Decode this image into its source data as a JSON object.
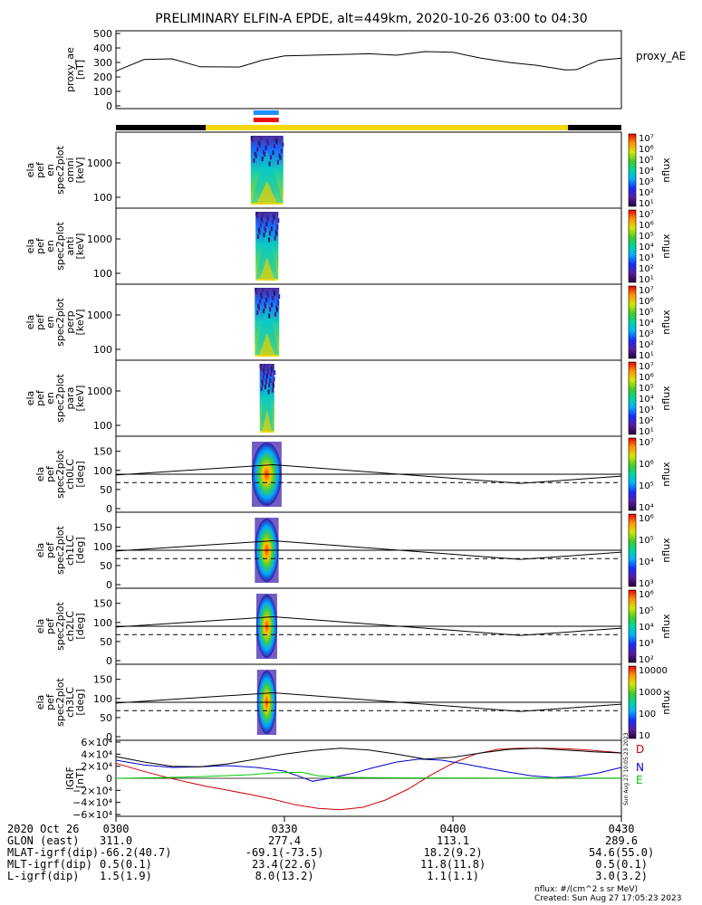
{
  "title": "PRELIMINARY ELFIN-A EPDE, alt=449km, 2020-10-26 03:00 to 04:30",
  "chart_data": [
    {
      "type": "line",
      "name": "proxy_ae-panel",
      "ylabel": [
        "proxy_ae",
        "[nT]"
      ],
      "legend": "proxy_AE",
      "ylim": [
        0,
        500
      ],
      "yticks": [
        "0",
        "100",
        "200",
        "300",
        "400",
        "500"
      ],
      "series": [
        {
          "name": "proxy_AE",
          "x": [
            0,
            5,
            10,
            15,
            22,
            26,
            30,
            35,
            40,
            45,
            50,
            55,
            60,
            65,
            70,
            75,
            80,
            82,
            86,
            90
          ],
          "y": [
            240,
            320,
            325,
            270,
            268,
            315,
            345,
            350,
            355,
            360,
            350,
            375,
            370,
            330,
            300,
            280,
            248,
            250,
            315,
            330
          ]
        }
      ]
    },
    {
      "type": "heatmap",
      "name": "omni-spectrogram",
      "ylabel": [
        "ela",
        "pef",
        "en",
        "spec2plot",
        "omni",
        "[keV]"
      ],
      "yticks": [
        "100",
        "1000"
      ],
      "colorbar": {
        "label": "nflux",
        "ticks": [
          "10¹",
          "10²",
          "10³",
          "10⁴",
          "10⁵",
          "10⁶",
          "10⁷"
        ]
      }
    },
    {
      "type": "heatmap",
      "name": "anti-spectrogram",
      "ylabel": [
        "ela",
        "pef",
        "en",
        "spec2plot",
        "anti",
        "[keV]"
      ],
      "yticks": [
        "100",
        "1000"
      ],
      "colorbar": {
        "label": "nflux",
        "ticks": [
          "10¹",
          "10²",
          "10³",
          "10⁴",
          "10⁵",
          "10⁶",
          "10⁷"
        ]
      }
    },
    {
      "type": "heatmap",
      "name": "perp-spectrogram",
      "ylabel": [
        "ela",
        "pef",
        "en",
        "spec2plot",
        "perp",
        "[keV]"
      ],
      "yticks": [
        "100",
        "1000"
      ],
      "colorbar": {
        "label": "nflux",
        "ticks": [
          "10¹",
          "10²",
          "10³",
          "10⁴",
          "10⁵",
          "10⁶",
          "10⁷"
        ]
      }
    },
    {
      "type": "heatmap",
      "name": "para-spectrogram",
      "ylabel": [
        "ela",
        "pef",
        "en",
        "spec2plot",
        "para",
        "[keV]"
      ],
      "yticks": [
        "100",
        "1000"
      ],
      "colorbar": {
        "label": "nflux",
        "ticks": [
          "10¹",
          "10²",
          "10³",
          "10⁴",
          "10⁵",
          "10⁶",
          "10⁷"
        ]
      }
    },
    {
      "type": "heatmap",
      "name": "ch0LC-pitch",
      "ylabel": [
        "ela",
        "pef",
        "spec2plot",
        "ch0LC",
        "[deg]"
      ],
      "yticks": [
        "0",
        "50",
        "100",
        "150"
      ],
      "colorbar": {
        "label": "nflux",
        "ticks": [
          "10⁴",
          "10⁵",
          "10⁶",
          "10⁷"
        ]
      }
    },
    {
      "type": "heatmap",
      "name": "ch1LC-pitch",
      "ylabel": [
        "ela",
        "pef",
        "spec2plot",
        "ch1LC",
        "[deg]"
      ],
      "yticks": [
        "0",
        "50",
        "100",
        "150"
      ],
      "colorbar": {
        "label": "nflux",
        "ticks": [
          "10³",
          "10⁴",
          "10⁵",
          "10⁶"
        ]
      }
    },
    {
      "type": "heatmap",
      "name": "ch2LC-pitch",
      "ylabel": [
        "ela",
        "pef",
        "spec2plot",
        "ch2LC",
        "[deg]"
      ],
      "yticks": [
        "0",
        "50",
        "100",
        "150"
      ],
      "colorbar": {
        "label": "nflux",
        "ticks": [
          "10²",
          "10³",
          "10⁴",
          "10⁵",
          "10⁶"
        ]
      }
    },
    {
      "type": "heatmap",
      "name": "ch3LC-pitch",
      "ylabel": [
        "ela",
        "pef",
        "spec2plot",
        "ch3LC",
        "[deg]"
      ],
      "yticks": [
        "0",
        "50",
        "100",
        "150"
      ],
      "colorbar": {
        "label": "nflux",
        "ticks": [
          "10",
          "100",
          "1000",
          "10000"
        ]
      }
    },
    {
      "type": "line",
      "name": "igrf-panel",
      "ylabel": [
        "IGRF",
        "[nT]"
      ],
      "ylim": [
        -60000,
        60000
      ],
      "yticks": [
        "−6×10⁴",
        "−4×10⁴",
        "−2×10⁴",
        "0",
        "2×10⁴",
        "4×10⁴",
        "6×10⁴"
      ],
      "side_label": "Sun Aug 27 10:05:23 2023",
      "series": [
        {
          "name": "D",
          "color": "#cc0000",
          "x": [
            0,
            4,
            8,
            12,
            16,
            20,
            24,
            28,
            32,
            36,
            40,
            44,
            48,
            52,
            56,
            60,
            64,
            68,
            72,
            76,
            80,
            84,
            88,
            90
          ],
          "y": [
            25000,
            14000,
            4000,
            -5000,
            -13000,
            -20000,
            -27000,
            -35000,
            -44000,
            -50000,
            -52000,
            -48000,
            -36000,
            -18000,
            5000,
            25000,
            40000,
            48000,
            50000,
            50000,
            49000,
            47000,
            44000,
            42000
          ]
        },
        {
          "name": "N",
          "color": "#0000cc",
          "x": [
            0,
            5,
            10,
            15,
            20,
            25,
            30,
            33,
            35,
            38,
            42,
            46,
            50,
            54,
            58,
            62,
            66,
            70,
            74,
            78,
            82,
            86,
            90
          ],
          "y": [
            30000,
            22000,
            18000,
            19000,
            21000,
            18000,
            12000,
            2000,
            -5000,
            0,
            8000,
            18000,
            27000,
            32000,
            30000,
            24000,
            17000,
            10000,
            4000,
            1000,
            3000,
            9000,
            18000
          ]
        },
        {
          "name": "E",
          "color": "#00cc00",
          "x": [
            0,
            8,
            16,
            24,
            28,
            33,
            36,
            40,
            50,
            60,
            70,
            80,
            90
          ],
          "y": [
            0,
            1000,
            3000,
            6000,
            9000,
            10000,
            4000,
            1500,
            800,
            600,
            500,
            400,
            500
          ]
        },
        {
          "name": "",
          "color": "#000000",
          "x": [
            0,
            5,
            10,
            15,
            20,
            25,
            30,
            35,
            40,
            45,
            50,
            55,
            60,
            65,
            70,
            75,
            80,
            85,
            90
          ],
          "y": [
            36000,
            27000,
            20000,
            19000,
            24000,
            32000,
            40000,
            46000,
            50000,
            47000,
            40000,
            32000,
            35000,
            42000,
            48000,
            50000,
            47000,
            44000,
            42000
          ]
        }
      ]
    }
  ],
  "x_axis": {
    "range_minutes": [
      0,
      90
    ],
    "tick_minutes": [
      0,
      30,
      60,
      90
    ],
    "rows": [
      {
        "label": "2020 Oct 26",
        "values": [
          "0300",
          "0330",
          "0400",
          "0430"
        ]
      },
      {
        "label": "GLON (east)",
        "values": [
          "311.0",
          "277.4",
          "113.1",
          "289.6"
        ]
      },
      {
        "label": "MLAT-igrf(dip)",
        "values": [
          "-66.2(40.7)",
          "-69.1(-73.5)",
          "18.2(9.2)",
          "54.6(55.0)"
        ]
      },
      {
        "label": "MLT-igrf(dip)",
        "values": [
          "0.5(0.1)",
          "23.4(22.6)",
          "11.8(11.8)",
          "0.5(0.1)"
        ]
      },
      {
        "label": "L-igrf(dip)",
        "values": [
          "1.5(1.9)",
          "8.0(13.2)",
          "1.1(1.1)",
          "3.0(3.2)"
        ]
      }
    ]
  },
  "footer": {
    "line1": "nflux: #/(cm^2 s sr MeV)",
    "line2": "Created: Sun Aug 27 17:05:23 2023"
  },
  "colors": {
    "black_bar": "#000000",
    "yellow_bar": "#f5d80a",
    "blue_bar": "#1e90ff",
    "red_bar": "#ee1111"
  }
}
